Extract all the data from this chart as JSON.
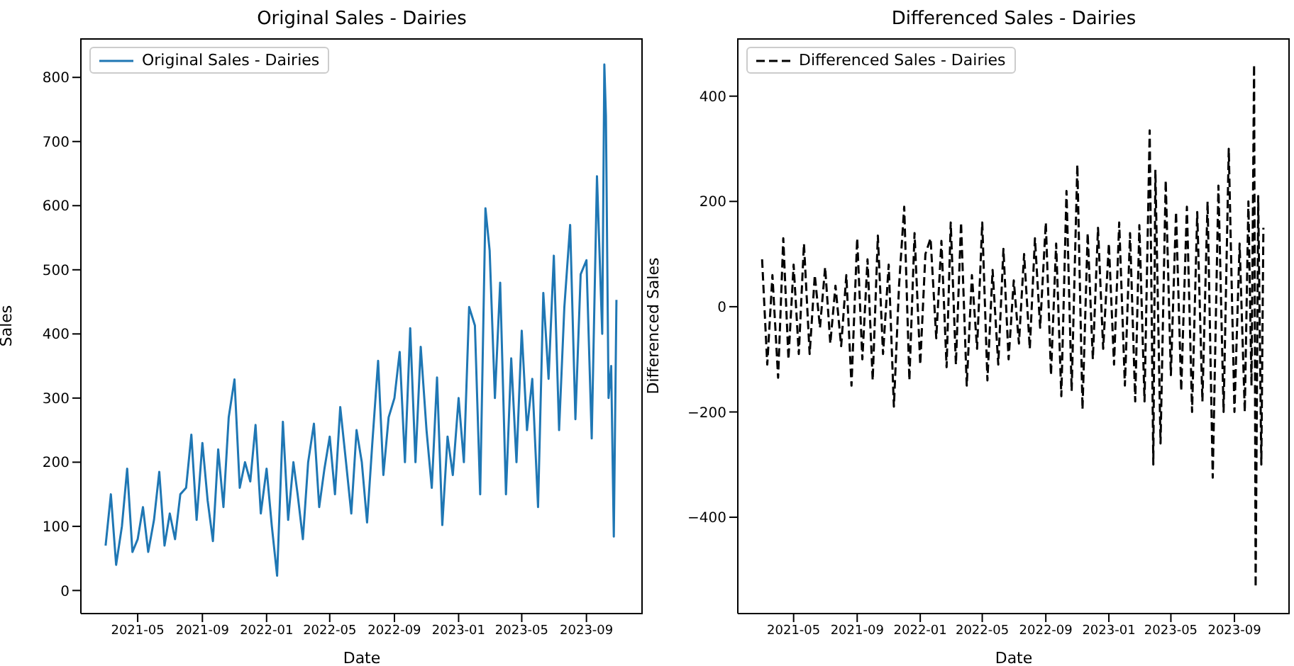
{
  "chart_data": [
    {
      "type": "line",
      "title": "Original Sales - Dairies",
      "xlabel": "Date",
      "ylabel": "Sales",
      "legend": "top left",
      "line_style": "solid",
      "x": [
        "2021-03-01",
        "2021-03-11",
        "2021-03-21",
        "2021-04-01",
        "2021-04-11",
        "2021-04-21",
        "2021-05-01",
        "2021-05-11",
        "2021-05-21",
        "2021-06-01",
        "2021-06-11",
        "2021-06-21",
        "2021-07-01",
        "2021-07-11",
        "2021-07-21",
        "2021-08-01",
        "2021-08-11",
        "2021-08-21",
        "2021-09-01",
        "2021-09-11",
        "2021-09-21",
        "2021-10-01",
        "2021-10-11",
        "2021-10-21",
        "2021-11-01",
        "2021-11-11",
        "2021-11-21",
        "2021-12-01",
        "2021-12-11",
        "2021-12-21",
        "2022-01-01",
        "2022-01-11",
        "2022-01-21",
        "2022-02-01",
        "2022-02-11",
        "2022-02-21",
        "2022-03-01",
        "2022-03-11",
        "2022-03-21",
        "2022-04-01",
        "2022-04-11",
        "2022-04-21",
        "2022-05-01",
        "2022-05-11",
        "2022-05-21",
        "2022-06-01",
        "2022-06-11",
        "2022-06-21",
        "2022-07-01",
        "2022-07-11",
        "2022-07-21",
        "2022-08-01",
        "2022-08-11",
        "2022-08-21",
        "2022-09-01",
        "2022-09-11",
        "2022-09-21",
        "2022-10-01",
        "2022-10-11",
        "2022-10-21",
        "2022-11-01",
        "2022-11-11",
        "2022-11-21",
        "2022-12-01",
        "2022-12-11",
        "2022-12-21",
        "2023-01-01",
        "2023-01-11",
        "2023-01-21",
        "2023-02-01",
        "2023-02-11",
        "2023-02-21",
        "2023-03-01",
        "2023-03-11",
        "2023-03-21",
        "2023-04-01",
        "2023-04-11",
        "2023-04-21",
        "2023-05-01",
        "2023-05-11",
        "2023-05-21",
        "2023-06-01",
        "2023-06-11",
        "2023-06-21",
        "2023-07-01",
        "2023-07-11",
        "2023-07-21",
        "2023-08-01",
        "2023-08-11",
        "2023-08-21",
        "2023-09-01",
        "2023-09-11",
        "2023-09-21",
        "2023-10-01",
        "2023-10-05",
        "2023-10-08",
        "2023-10-13",
        "2023-10-18",
        "2023-10-23",
        "2023-10-28"
      ],
      "series": [
        {
          "name": "Original Sales - Dairies",
          "color": "#1f77b4",
          "values": [
            70,
            150,
            40,
            100,
            190,
            60,
            80,
            130,
            60,
            110,
            185,
            70,
            120,
            80,
            150,
            160,
            243,
            110,
            230,
            140,
            77,
            220,
            130,
            270,
            329,
            160,
            200,
            170,
            258,
            120,
            190,
            100,
            23,
            263,
            110,
            200,
            150,
            80,
            200,
            260,
            130,
            190,
            240,
            150,
            286,
            200,
            120,
            250,
            200,
            106,
            230,
            358,
            180,
            270,
            300,
            372,
            200,
            409,
            200,
            380,
            250,
            160,
            332,
            102,
            240,
            180,
            300,
            200,
            442,
            413,
            150,
            596,
            530,
            300,
            480,
            150,
            362,
            200,
            405,
            250,
            330,
            130,
            464,
            330,
            522,
            250,
            442,
            570,
            267,
            493,
            515,
            237,
            646,
            400,
            820,
            740,
            300,
            350,
            84,
            453
          ]
        }
      ],
      "xlim": [
        "2021-01-13",
        "2023-12-17"
      ],
      "xticks": [
        "2021-05",
        "2021-09",
        "2022-01",
        "2022-05",
        "2022-09",
        "2023-01",
        "2023-05",
        "2023-09"
      ],
      "ylim": [
        -36,
        861
      ],
      "yticks": [
        0,
        100,
        200,
        300,
        400,
        500,
        600,
        700,
        800
      ]
    },
    {
      "type": "line",
      "title": "Differenced Sales - Dairies",
      "xlabel": "Date",
      "ylabel": "Differenced Sales",
      "legend": "top left",
      "line_style": "dashed",
      "x": [
        "2021-03-01",
        "2021-03-11",
        "2021-03-21",
        "2021-04-01",
        "2021-04-11",
        "2021-04-21",
        "2021-05-01",
        "2021-05-11",
        "2021-05-21",
        "2021-06-01",
        "2021-06-11",
        "2021-06-21",
        "2021-07-01",
        "2021-07-11",
        "2021-07-21",
        "2021-08-01",
        "2021-08-11",
        "2021-08-21",
        "2021-09-01",
        "2021-09-11",
        "2021-09-21",
        "2021-10-01",
        "2021-10-11",
        "2021-10-21",
        "2021-11-01",
        "2021-11-11",
        "2021-11-21",
        "2021-12-01",
        "2021-12-11",
        "2021-12-21",
        "2022-01-01",
        "2022-01-11",
        "2022-01-21",
        "2022-02-01",
        "2022-02-11",
        "2022-02-21",
        "2022-03-01",
        "2022-03-11",
        "2022-03-21",
        "2022-04-01",
        "2022-04-11",
        "2022-04-21",
        "2022-05-01",
        "2022-05-11",
        "2022-05-21",
        "2022-06-01",
        "2022-06-11",
        "2022-06-21",
        "2022-07-01",
        "2022-07-11",
        "2022-07-21",
        "2022-08-01",
        "2022-08-11",
        "2022-08-21",
        "2022-09-01",
        "2022-09-11",
        "2022-09-21",
        "2022-10-01",
        "2022-10-11",
        "2022-10-21",
        "2022-11-01",
        "2022-11-11",
        "2022-11-21",
        "2022-12-01",
        "2022-12-11",
        "2022-12-21",
        "2023-01-01",
        "2023-01-11",
        "2023-01-21",
        "2023-02-01",
        "2023-02-11",
        "2023-02-21",
        "2023-03-01",
        "2023-03-11",
        "2023-03-21",
        "2023-03-28",
        "2023-04-01",
        "2023-04-11",
        "2023-04-21",
        "2023-05-01",
        "2023-05-11",
        "2023-05-21",
        "2023-06-01",
        "2023-06-11",
        "2023-06-21",
        "2023-07-01",
        "2023-07-11",
        "2023-07-21",
        "2023-08-01",
        "2023-08-11",
        "2023-08-21",
        "2023-09-01",
        "2023-09-11",
        "2023-09-21",
        "2023-09-28",
        "2023-10-04",
        "2023-10-09",
        "2023-10-12",
        "2023-10-17",
        "2023-10-23",
        "2023-10-27"
      ],
      "series": [
        {
          "name": "Differenced Sales - Dairies",
          "color": "#000000",
          "values": [
            90,
            -110,
            60,
            -135,
            130,
            -100,
            80,
            -90,
            120,
            -90,
            60,
            -40,
            75,
            -70,
            40,
            -75,
            60,
            -150,
            130,
            -100,
            90,
            -140,
            135,
            -90,
            80,
            -190,
            40,
            190,
            -140,
            140,
            -110,
            100,
            130,
            -60,
            125,
            -115,
            160,
            -110,
            160,
            -150,
            60,
            -80,
            160,
            -140,
            70,
            -110,
            110,
            -100,
            50,
            -70,
            100,
            -80,
            130,
            -40,
            160,
            -130,
            120,
            -170,
            220,
            -160,
            270,
            -195,
            140,
            -100,
            150,
            -80,
            120,
            -110,
            160,
            -150,
            140,
            -180,
            155,
            -180,
            335,
            -300,
            260,
            -260,
            240,
            -130,
            180,
            -160,
            190,
            -200,
            180,
            -180,
            200,
            -325,
            230,
            -200,
            300,
            -200,
            120,
            -200,
            200,
            -150,
            460,
            -533,
            210,
            -300,
            150
          ]
        }
      ],
      "xlim": [
        "2021-01-13",
        "2023-12-17"
      ],
      "xticks": [
        "2021-05",
        "2021-09",
        "2022-01",
        "2022-05",
        "2022-09",
        "2023-01",
        "2023-05",
        "2023-09"
      ],
      "ylim": [
        -583,
        510
      ],
      "yticks": [
        -400,
        -200,
        0,
        200,
        400
      ]
    }
  ]
}
